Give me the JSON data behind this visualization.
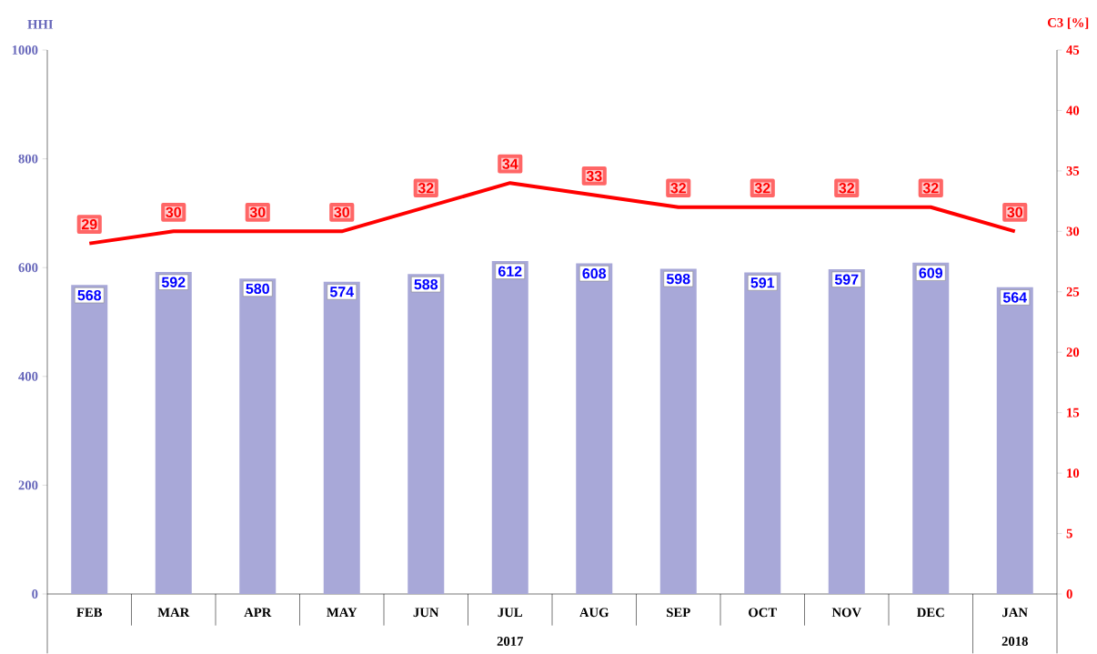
{
  "chart_data": {
    "type": "bar",
    "categories": [
      "FEB",
      "MAR",
      "APR",
      "MAY",
      "JUN",
      "JUL",
      "AUG",
      "SEP",
      "OCT",
      "NOV",
      "DEC",
      "JAN"
    ],
    "series": [
      {
        "color": "#a8a8d8",
        "values": [
          568,
          592,
          580,
          574,
          588,
          612,
          608,
          598,
          591,
          597,
          609,
          564
        ]
      },
      {
        "type": "line",
        "axis": "y2",
        "color": "#ff0000",
        "values": [
          29,
          30,
          30,
          30,
          32,
          34,
          33,
          32,
          32,
          32,
          32,
          30
        ]
      }
    ],
    "ylim": [
      0,
      1000
    ],
    "yticks": [
      0,
      200,
      400,
      600,
      800,
      1000
    ],
    "y2lim": [
      0,
      45
    ],
    "y2ticks": [
      0,
      5,
      10,
      15,
      20,
      25,
      30,
      35,
      40,
      45
    ],
    "ylabel": "HHI",
    "y2label": "C3 [%]",
    "data_labels": true,
    "annotations": [
      "2017",
      "2018"
    ]
  }
}
